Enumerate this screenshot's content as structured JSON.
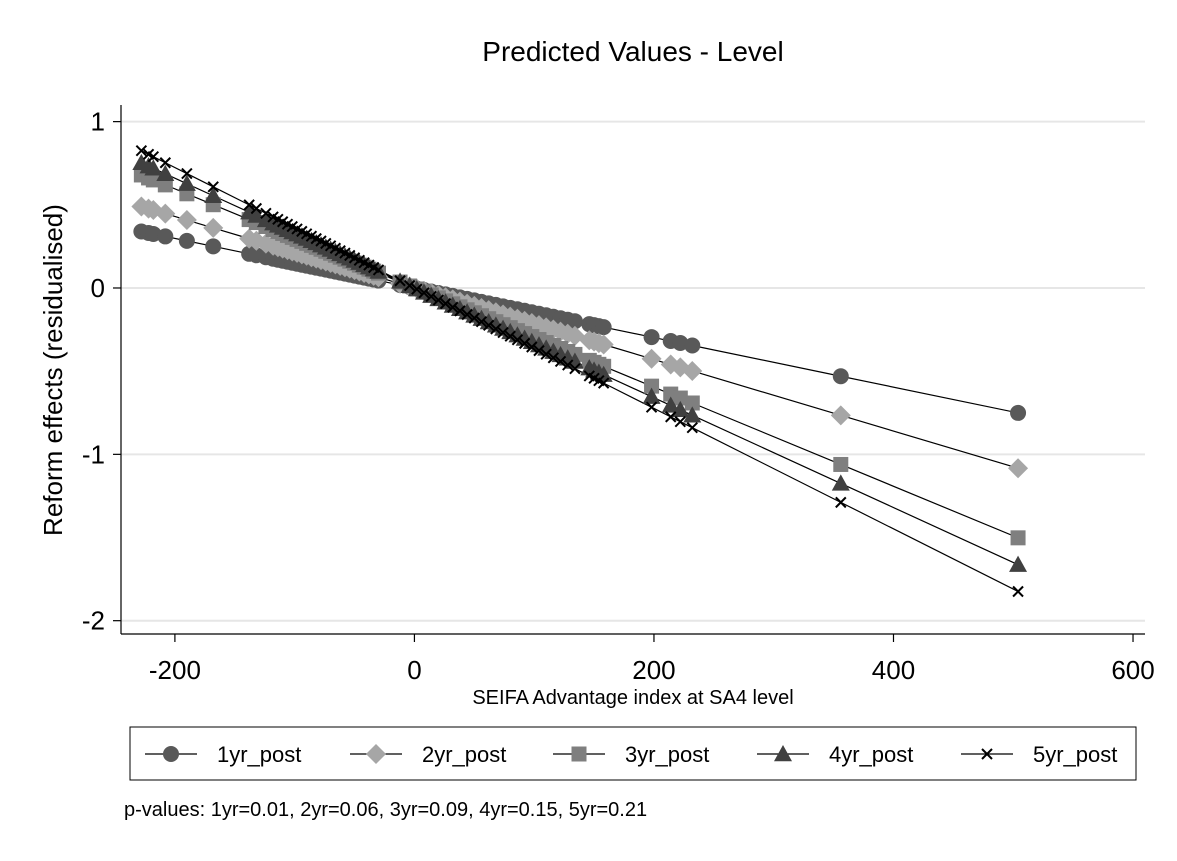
{
  "chart_data": {
    "type": "line",
    "title": "Predicted Values - Level",
    "xlabel": "SEIFA Advantage index at SA4 level",
    "ylabel": "Reform effects (residualised)",
    "xlim": [
      -245,
      610
    ],
    "ylim": [
      -2.08,
      1.1
    ],
    "xticks": [
      -200,
      0,
      200,
      400,
      600
    ],
    "yticks": [
      1,
      0,
      -1,
      -2
    ],
    "x_tick_labels": [
      "-200",
      "0",
      "200",
      "400",
      "600"
    ],
    "y_tick_labels": [
      "1",
      "0",
      "-1",
      "-2"
    ],
    "grid": true,
    "legend_position": "bottom",
    "x": [
      -228,
      -222,
      -218,
      -208,
      -190,
      -168,
      -138,
      -132,
      -124,
      -118,
      -114,
      -110,
      -106,
      -102,
      -98,
      -94,
      -90,
      -86,
      -82,
      -78,
      -74,
      -70,
      -66,
      -62,
      -58,
      -54,
      -50,
      -46,
      -42,
      -38,
      -34,
      -30,
      -12,
      -4,
      2,
      8,
      14,
      20,
      26,
      32,
      38,
      44,
      50,
      56,
      62,
      68,
      74,
      80,
      86,
      92,
      98,
      104,
      110,
      116,
      122,
      128,
      134,
      146,
      150,
      154,
      158,
      198,
      214,
      222,
      232,
      356,
      504
    ],
    "series": [
      {
        "name": "1yr_post",
        "marker": "circle",
        "color": "#595959",
        "slope": -0.00149
      },
      {
        "name": "2yr_post",
        "marker": "diamond",
        "color": "#a6a6a6",
        "slope": -0.00215
      },
      {
        "name": "3yr_post",
        "marker": "square",
        "color": "#7f7f7f",
        "slope": -0.00298
      },
      {
        "name": "4yr_post",
        "marker": "triangle",
        "color": "#404040",
        "slope": -0.0033
      },
      {
        "name": "5yr_post",
        "marker": "x",
        "color": "#000000",
        "slope": -0.00362
      }
    ],
    "note": "p-values: 1yr=0.01,  2yr=0.06,  3yr=0.09,  4yr=0.15,  5yr=0.21"
  }
}
